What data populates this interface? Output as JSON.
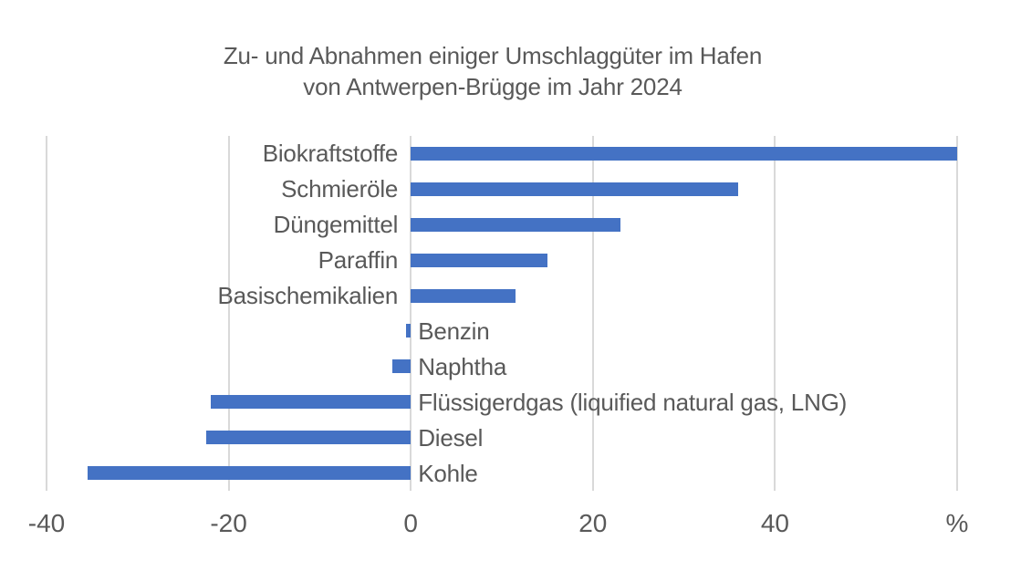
{
  "title": {
    "line1": "Zu- und Abnahmen einiger Umschlaggüter im Hafen",
    "line2": "von Antwerpen-Brügge im Jahr 2024"
  },
  "chart_data": {
    "type": "bar",
    "orientation": "horizontal",
    "title": "Zu- und Abnahmen einiger Umschlaggüter im Hafen von Antwerpen-Brügge im Jahr 2024",
    "unit": "%",
    "categories": [
      "Biokraftstoffe",
      "Schmieröle",
      "Düngemittel",
      "Paraffin",
      "Basischemikalien",
      "Benzin",
      "Naphtha",
      "Flüssigerdgas (liquified natural gas, LNG)",
      "Diesel",
      "Kohle"
    ],
    "values": [
      60,
      36,
      23,
      15,
      11.5,
      -0.5,
      -2,
      -22,
      -22.5,
      -35.5
    ],
    "xlim": [
      -40,
      60
    ],
    "x_ticks": [
      {
        "value": -40,
        "label": "-40"
      },
      {
        "value": -20,
        "label": "-20"
      },
      {
        "value": 0,
        "label": "0"
      },
      {
        "value": 20,
        "label": "20"
      },
      {
        "value": 40,
        "label": "40"
      },
      {
        "value": 60,
        "label": "%"
      }
    ],
    "grid": "vertical",
    "legend": "none",
    "bar_color": "#4472C4",
    "text_color": "#595959",
    "gridline_color": "#d9d9d9",
    "background_color": "#ffffff"
  }
}
